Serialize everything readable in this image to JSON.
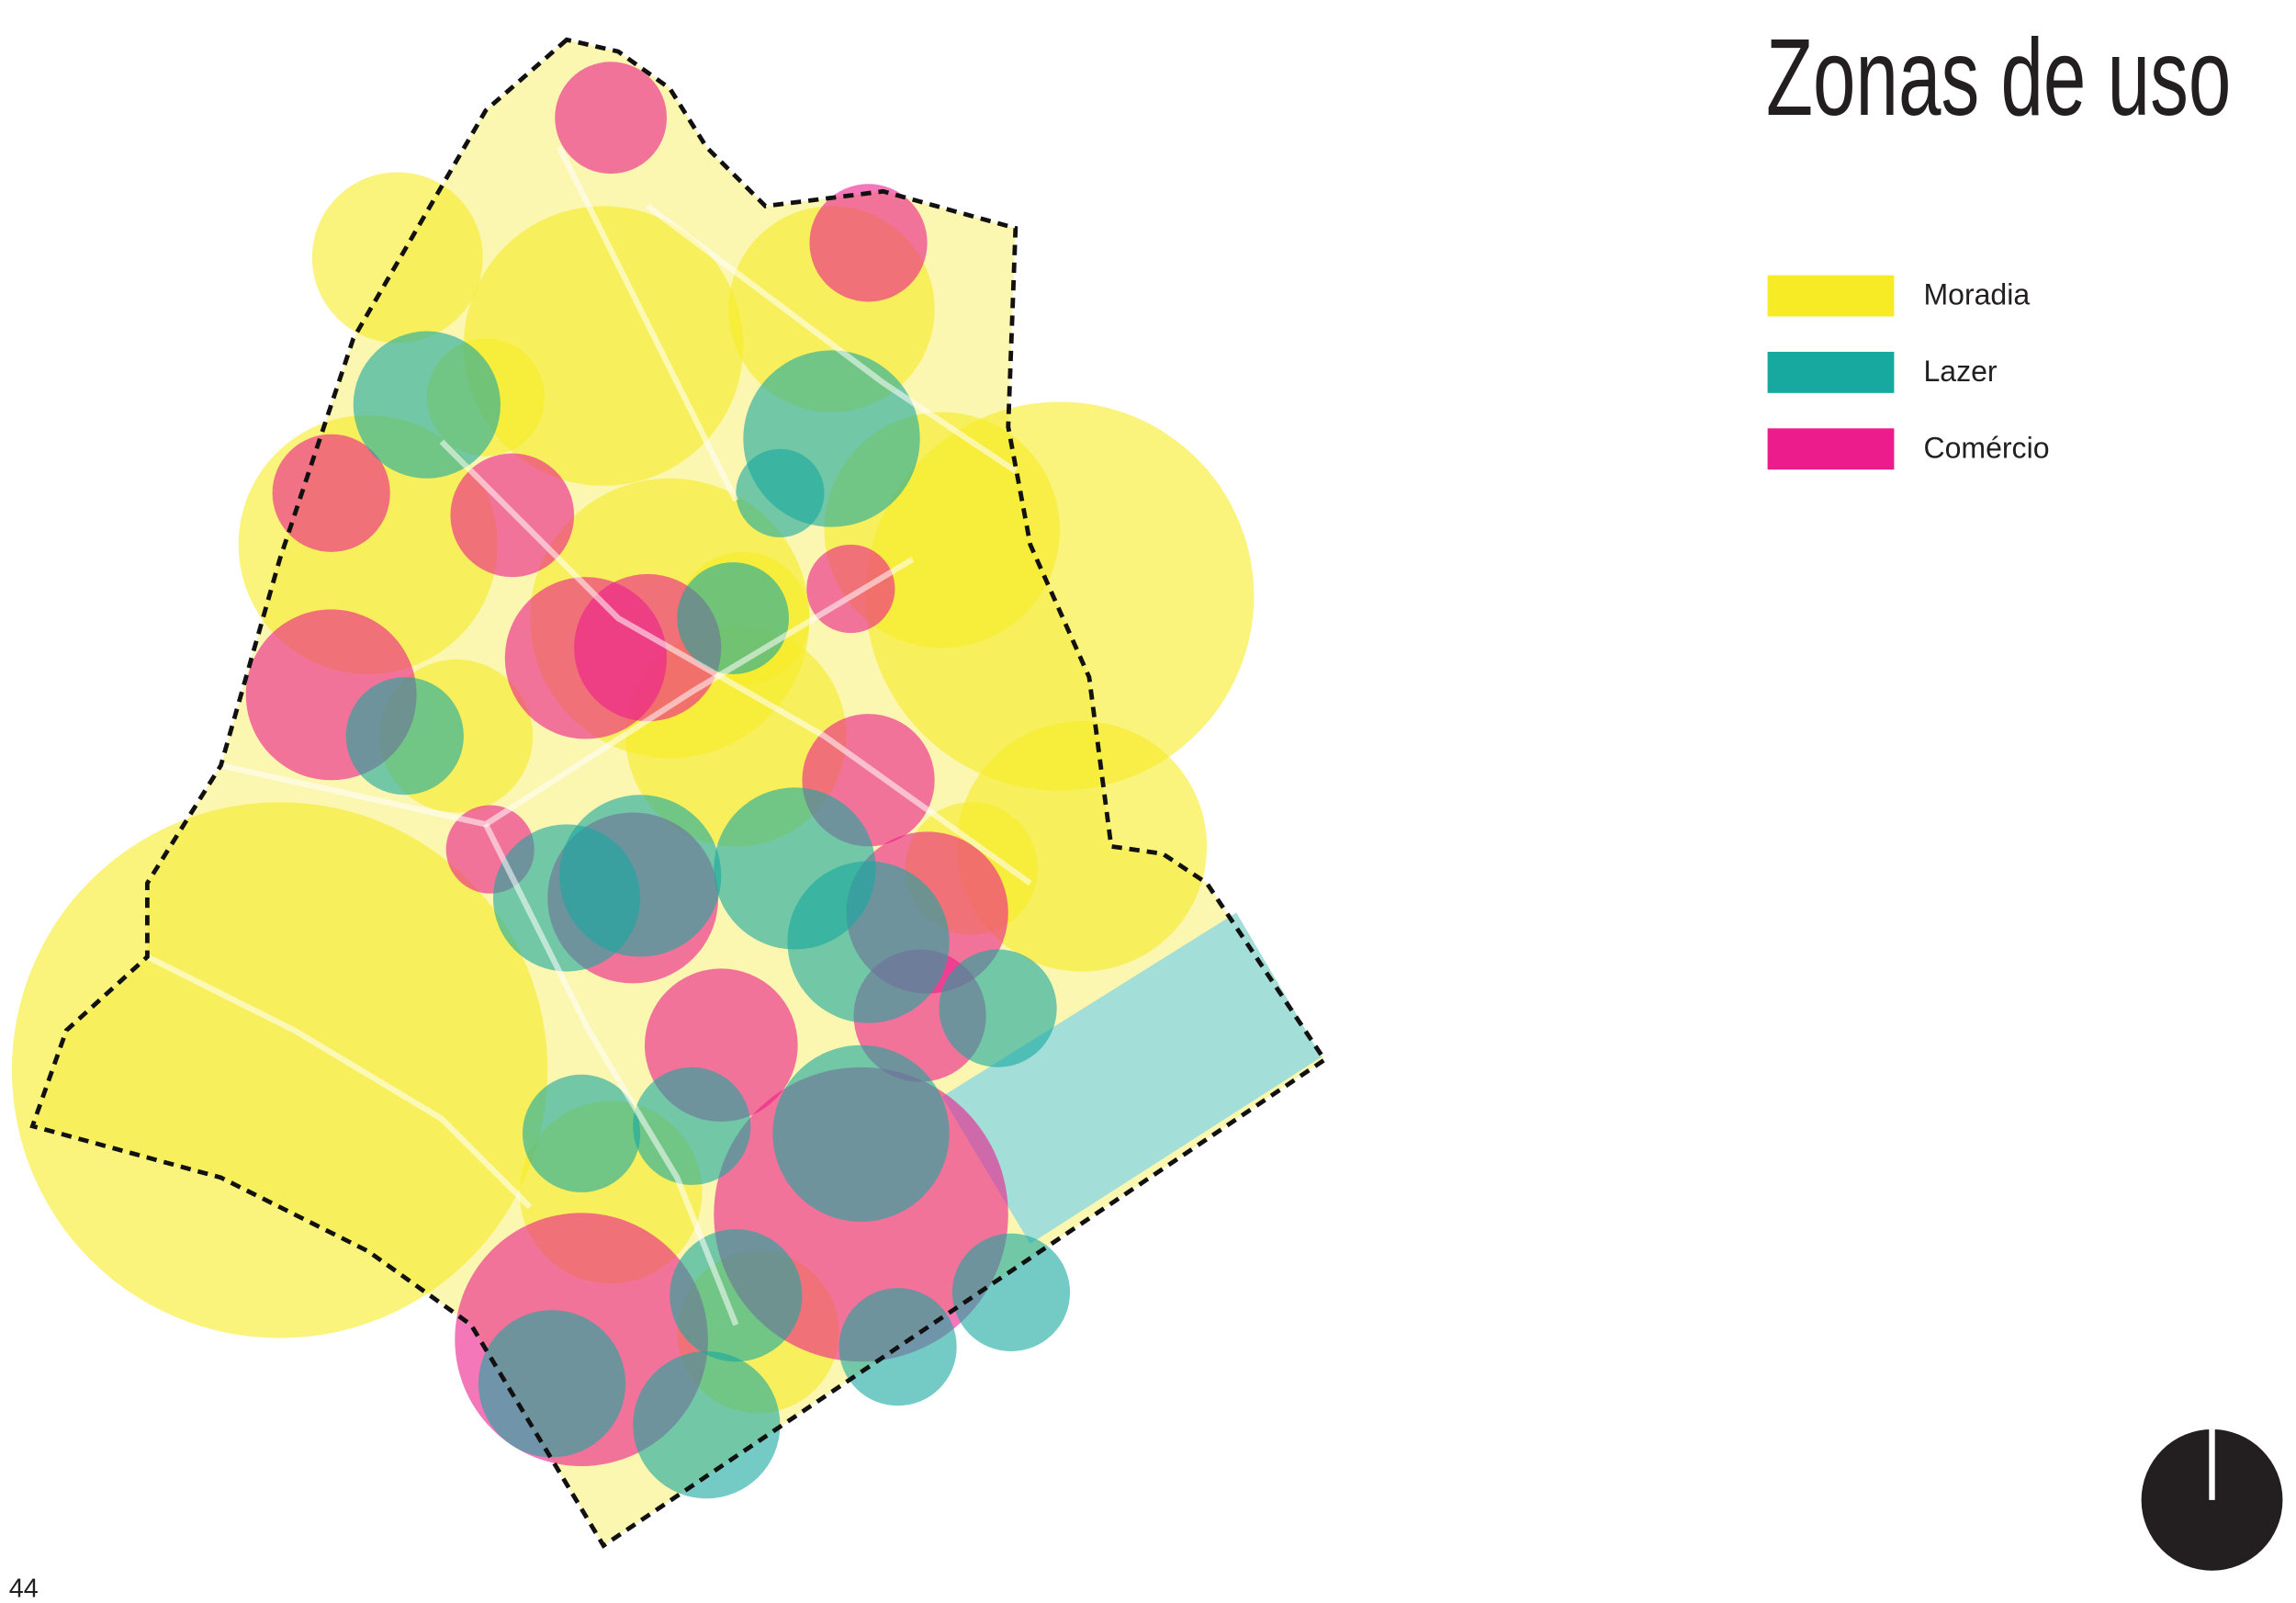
{
  "page_title": "Zonas de uso",
  "legend": [
    {
      "label": "Moradia",
      "color": "#f6eb24"
    },
    {
      "label": "Lazer",
      "color": "#17a9a0"
    },
    {
      "label": "Comércio",
      "color": "#ec1c8c"
    }
  ],
  "page_number": "44"
}
